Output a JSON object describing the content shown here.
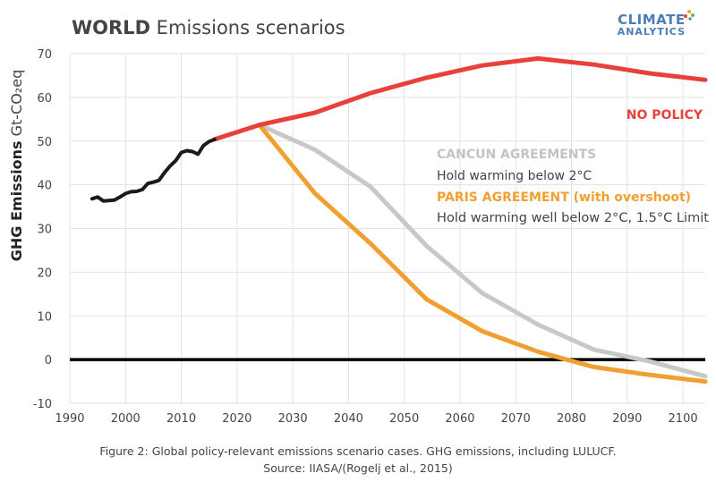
{
  "title_bold": "WORLD",
  "title_rest": " Emissions scenarios",
  "logo": {
    "line1": "CLIMATE",
    "line2": "ANALYTICS"
  },
  "colors": {
    "historical": "#1a1a1a",
    "no_policy": "#e8413c",
    "cancun": "#c8c8c8",
    "paris": "#f0a030",
    "zero_line": "#000000",
    "grid": "#e2e2e2"
  },
  "caption": {
    "line1": "Figure 2: Global policy-relevant emissions scenario cases. GHG emissions, including LULUCF.",
    "line2": "Source: IIASA/(Rogelj et al., 2015)"
  },
  "chart_data": {
    "type": "line",
    "ylabel_bold": "GHG Emissions",
    "ylabel_rest": " Gt-CO₂eq",
    "xlim": [
      1990,
      2104
    ],
    "ylim": [
      -10,
      70
    ],
    "xticks": [
      1990,
      2000,
      2010,
      2020,
      2030,
      2040,
      2050,
      2060,
      2070,
      2080,
      2090,
      2100
    ],
    "yticks": [
      -10,
      0,
      10,
      20,
      30,
      40,
      50,
      60,
      70
    ],
    "grid": true,
    "series": [
      {
        "key": "historical",
        "x": [
          1994,
          1995,
          1996,
          1997,
          1998,
          1999,
          2000,
          2001,
          2002,
          2003,
          2004,
          2005,
          2006,
          2007,
          2008,
          2009,
          2010,
          2011,
          2012,
          2013,
          2014,
          2015,
          2016
        ],
        "y": [
          36.8,
          37.2,
          36.3,
          36.4,
          36.5,
          37.2,
          38.0,
          38.4,
          38.5,
          38.9,
          40.3,
          40.6,
          41.0,
          42.8,
          44.3,
          45.5,
          47.4,
          47.8,
          47.6,
          47.0,
          49.0,
          49.9,
          50.4
        ]
      },
      {
        "key": "no_policy",
        "name": "NO POLICY",
        "x": [
          2016,
          2024,
          2034,
          2044,
          2054,
          2064,
          2074,
          2084,
          2094,
          2104
        ],
        "y": [
          50.4,
          53.7,
          56.5,
          61.0,
          64.5,
          67.3,
          68.9,
          67.5,
          65.5,
          64.0
        ]
      },
      {
        "key": "cancun",
        "name": "CANCUN AGREEMENTS",
        "desc": "Hold warming below 2°C",
        "x": [
          2024,
          2034,
          2044,
          2054,
          2064,
          2074,
          2084,
          2094,
          2104
        ],
        "y": [
          53.7,
          48.0,
          39.5,
          26.0,
          15.2,
          8.0,
          2.3,
          -0.4,
          -3.8
        ]
      },
      {
        "key": "paris",
        "name": "PARIS AGREEMENT (with overshoot)",
        "desc": "Hold warming well below 2°C, 1.5°C Limit",
        "x": [
          2024,
          2034,
          2044,
          2054,
          2064,
          2074,
          2084,
          2094,
          2104
        ],
        "y": [
          53.7,
          38.0,
          26.5,
          13.8,
          6.5,
          1.8,
          -1.7,
          -3.5,
          -5.0
        ]
      }
    ]
  }
}
